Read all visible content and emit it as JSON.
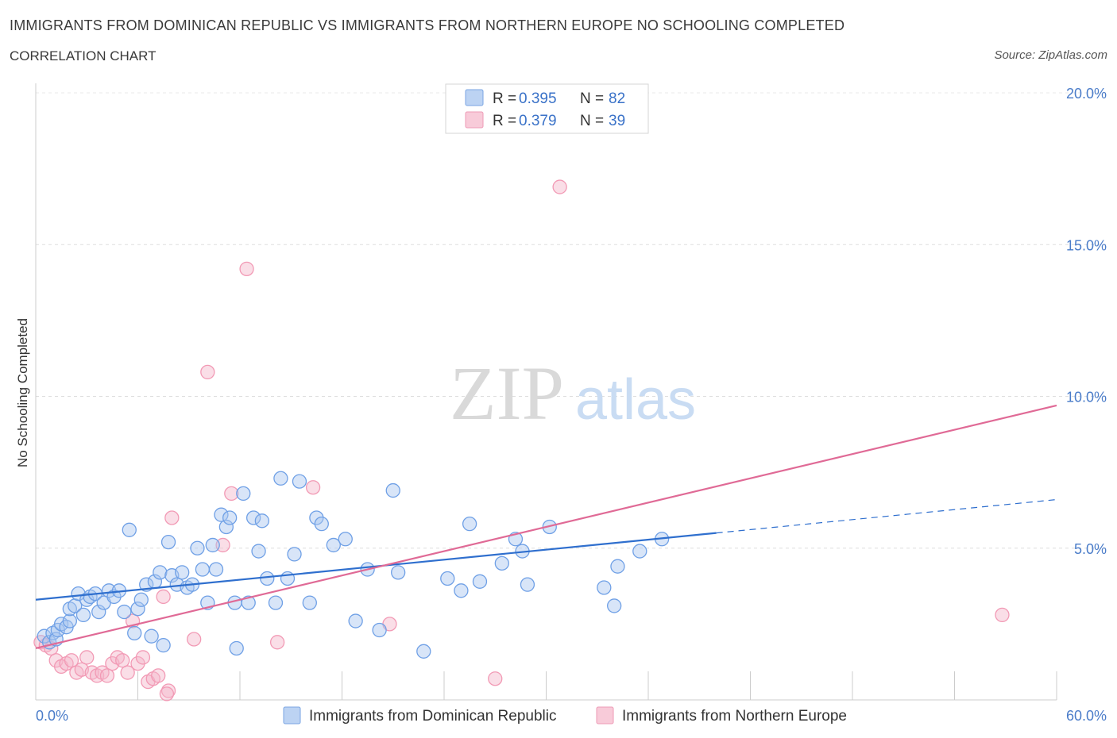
{
  "title": "IMMIGRANTS FROM DOMINICAN REPUBLIC VS IMMIGRANTS FROM NORTHERN EUROPE NO SCHOOLING COMPLETED",
  "subtitle": "CORRELATION CHART",
  "source": "Source: ZipAtlas.com",
  "watermark": {
    "zip": "ZIP",
    "atlas": "atlas"
  },
  "legend": {
    "rows": [
      {
        "r_label": "R =",
        "r_value": "0.395",
        "n_label": "N =",
        "n_value": "82",
        "color": "#a9c6ef"
      },
      {
        "r_label": "R =",
        "r_value": "0.379",
        "n_label": "N =",
        "n_value": "39",
        "color": "#f4b6c9"
      }
    ]
  },
  "bottom_legend": [
    {
      "label": "Immigrants from Dominican Republic",
      "color": "#a9c6ef"
    },
    {
      "label": "Immigrants from Northern Europe",
      "color": "#f4b6c9"
    }
  ],
  "chart_data": {
    "type": "scatter",
    "ylabel": "No Schooling Completed",
    "xlim": [
      0,
      60
    ],
    "ylim": [
      0,
      20
    ],
    "x_tick_labels": [
      "0.0%",
      "60.0%"
    ],
    "y_ticks": [
      5,
      10,
      15,
      20
    ],
    "y_tick_labels": [
      "5.0%",
      "10.0%",
      "15.0%",
      "20.0%"
    ],
    "grid": true,
    "series": [
      {
        "name": "Immigrants from Dominican Republic",
        "color": "#6fa0e6",
        "trend_color": "#2f6fce",
        "trend": {
          "x0": 0,
          "y0": 3.3,
          "x1": 40,
          "y1": 5.5,
          "dash_x1": 60,
          "dash_y1": 6.6
        },
        "points": [
          [
            0.5,
            2.1
          ],
          [
            0.8,
            1.9
          ],
          [
            1.0,
            2.2
          ],
          [
            1.2,
            2.0
          ],
          [
            1.3,
            2.3
          ],
          [
            1.5,
            2.5
          ],
          [
            1.8,
            2.4
          ],
          [
            2.0,
            2.6
          ],
          [
            2.0,
            3.0
          ],
          [
            2.3,
            3.1
          ],
          [
            2.5,
            3.5
          ],
          [
            2.8,
            2.8
          ],
          [
            3.0,
            3.3
          ],
          [
            3.2,
            3.4
          ],
          [
            3.5,
            3.5
          ],
          [
            3.7,
            2.9
          ],
          [
            4.0,
            3.2
          ],
          [
            4.3,
            3.6
          ],
          [
            4.6,
            3.4
          ],
          [
            4.9,
            3.6
          ],
          [
            5.2,
            2.9
          ],
          [
            5.5,
            5.6
          ],
          [
            5.8,
            2.2
          ],
          [
            6.0,
            3.0
          ],
          [
            6.2,
            3.3
          ],
          [
            6.5,
            3.8
          ],
          [
            6.8,
            2.1
          ],
          [
            7.0,
            3.9
          ],
          [
            7.3,
            4.2
          ],
          [
            7.5,
            1.8
          ],
          [
            7.8,
            5.2
          ],
          [
            8.0,
            4.1
          ],
          [
            8.3,
            3.8
          ],
          [
            8.6,
            4.2
          ],
          [
            8.9,
            3.7
          ],
          [
            9.2,
            3.8
          ],
          [
            9.5,
            5.0
          ],
          [
            9.8,
            4.3
          ],
          [
            10.1,
            3.2
          ],
          [
            10.4,
            5.1
          ],
          [
            10.6,
            4.3
          ],
          [
            10.9,
            6.1
          ],
          [
            11.2,
            5.7
          ],
          [
            11.4,
            6.0
          ],
          [
            11.7,
            3.2
          ],
          [
            11.8,
            1.7
          ],
          [
            12.2,
            6.8
          ],
          [
            12.5,
            3.2
          ],
          [
            12.8,
            6.0
          ],
          [
            13.1,
            4.9
          ],
          [
            13.3,
            5.9
          ],
          [
            13.6,
            4.0
          ],
          [
            14.1,
            3.2
          ],
          [
            14.4,
            7.3
          ],
          [
            14.8,
            4.0
          ],
          [
            15.2,
            4.8
          ],
          [
            15.5,
            7.2
          ],
          [
            16.1,
            3.2
          ],
          [
            16.5,
            6.0
          ],
          [
            16.8,
            5.8
          ],
          [
            17.5,
            5.1
          ],
          [
            18.2,
            5.3
          ],
          [
            18.8,
            2.6
          ],
          [
            19.5,
            4.3
          ],
          [
            20.2,
            2.3
          ],
          [
            21.0,
            6.9
          ],
          [
            21.3,
            4.2
          ],
          [
            22.8,
            1.6
          ],
          [
            24.2,
            4.0
          ],
          [
            25.0,
            3.6
          ],
          [
            25.5,
            5.8
          ],
          [
            26.1,
            3.9
          ],
          [
            27.4,
            4.5
          ],
          [
            28.2,
            5.3
          ],
          [
            28.6,
            4.9
          ],
          [
            28.9,
            3.8
          ],
          [
            30.2,
            5.7
          ],
          [
            33.4,
            3.7
          ],
          [
            34.0,
            3.1
          ],
          [
            34.2,
            4.4
          ],
          [
            35.5,
            4.9
          ],
          [
            36.8,
            5.3
          ]
        ]
      },
      {
        "name": "Immigrants from Northern Europe",
        "color": "#f29ab5",
        "trend_color": "#e06a96",
        "trend": {
          "x0": 0,
          "y0": 1.7,
          "x1": 60,
          "y1": 9.7
        },
        "points": [
          [
            0.3,
            1.9
          ],
          [
            0.6,
            1.8
          ],
          [
            0.9,
            1.7
          ],
          [
            1.2,
            1.3
          ],
          [
            1.5,
            1.1
          ],
          [
            1.8,
            1.2
          ],
          [
            2.1,
            1.3
          ],
          [
            2.4,
            0.9
          ],
          [
            2.7,
            1.0
          ],
          [
            3.0,
            1.4
          ],
          [
            3.3,
            0.9
          ],
          [
            3.6,
            0.8
          ],
          [
            3.9,
            0.9
          ],
          [
            4.2,
            0.8
          ],
          [
            4.5,
            1.2
          ],
          [
            4.8,
            1.4
          ],
          [
            5.1,
            1.3
          ],
          [
            5.4,
            0.9
          ],
          [
            5.7,
            2.6
          ],
          [
            6.0,
            1.2
          ],
          [
            6.3,
            1.4
          ],
          [
            6.6,
            0.6
          ],
          [
            6.9,
            0.7
          ],
          [
            7.2,
            0.8
          ],
          [
            7.5,
            3.4
          ],
          [
            7.8,
            0.3
          ],
          [
            8.0,
            6.0
          ],
          [
            9.3,
            2.0
          ],
          [
            10.1,
            10.8
          ],
          [
            11.0,
            5.1
          ],
          [
            11.5,
            6.8
          ],
          [
            12.4,
            14.2
          ],
          [
            14.2,
            1.9
          ],
          [
            16.3,
            7.0
          ],
          [
            20.8,
            2.5
          ],
          [
            27.0,
            0.7
          ],
          [
            30.8,
            16.9
          ],
          [
            56.8,
            2.8
          ],
          [
            7.7,
            0.2
          ]
        ]
      }
    ]
  }
}
